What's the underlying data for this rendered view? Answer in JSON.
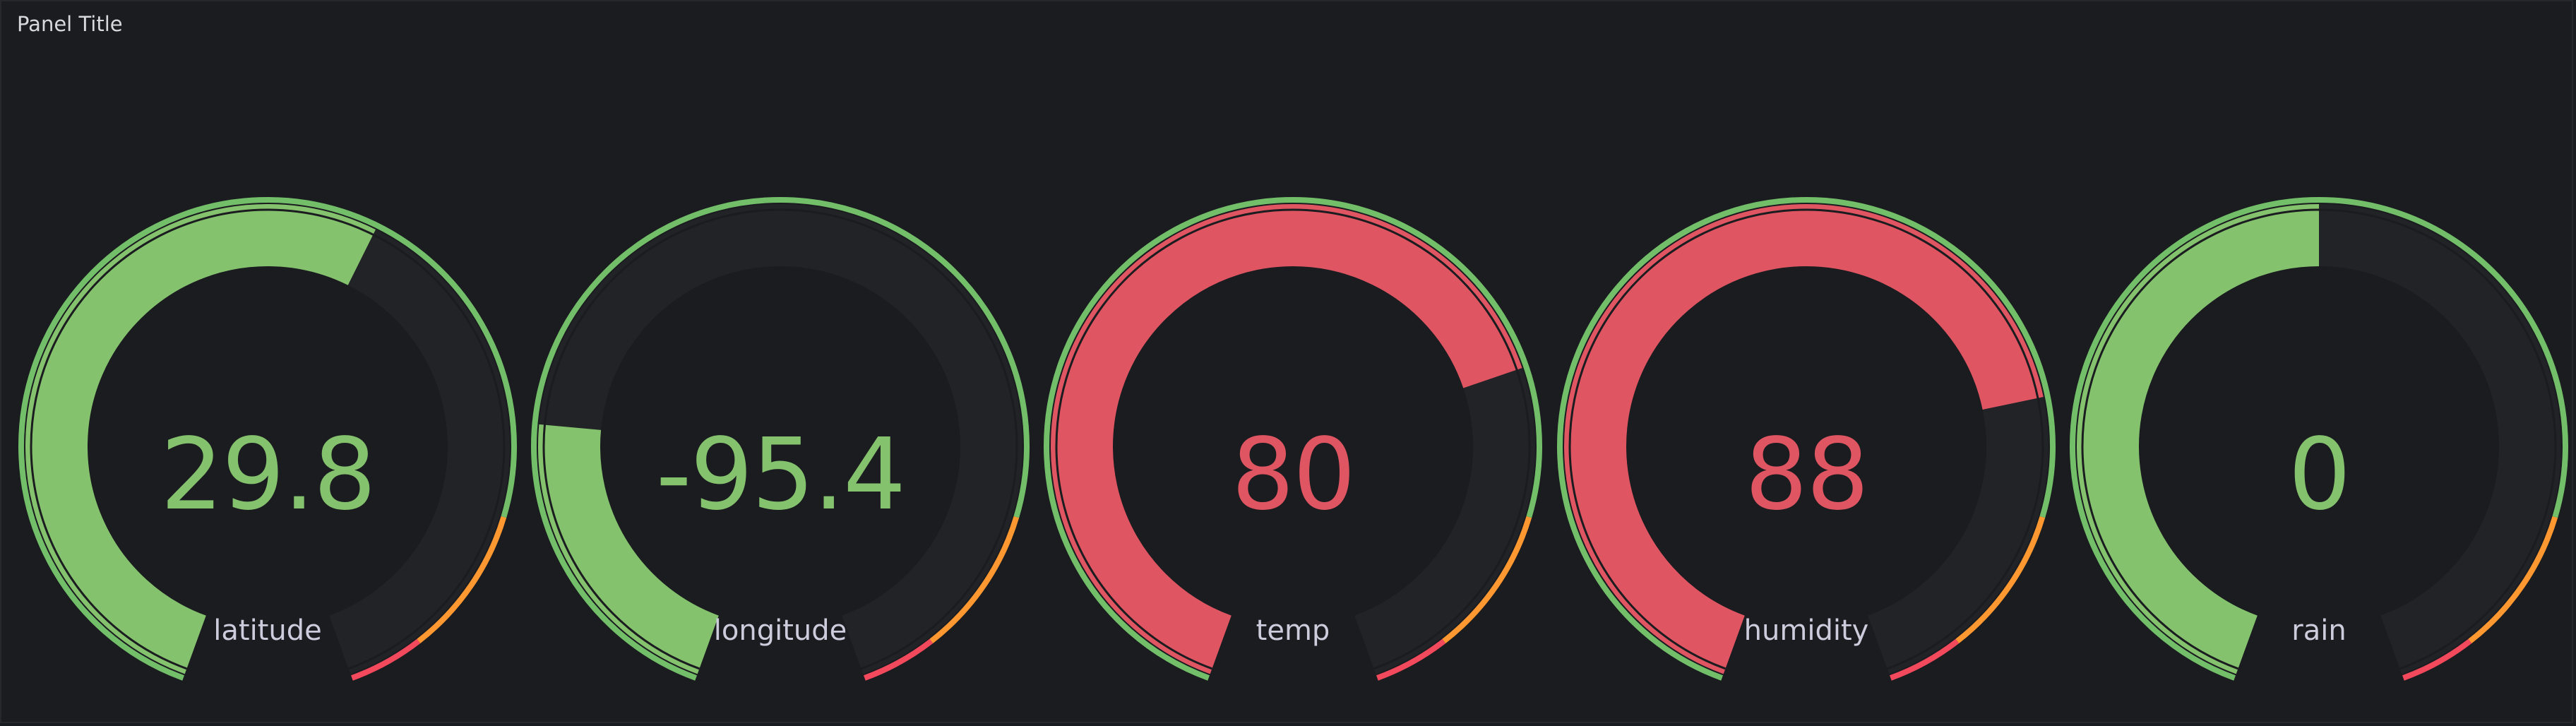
{
  "panel": {
    "title": "Panel Title"
  },
  "gauge_range": {
    "min": -180,
    "max": 180
  },
  "thresholds": [
    {
      "color": "#73bf69",
      "value": null
    },
    {
      "color": "#ff9830",
      "value": 120
    },
    {
      "color": "#f2495c",
      "value": 160
    }
  ],
  "colors": {
    "background": "#1a1c20",
    "track": "#212327",
    "green": "#85c26d",
    "red": "#e05562",
    "orange": "#f5a345"
  },
  "gauges": [
    {
      "name": "latitude",
      "label": "latitude",
      "display": "29.8",
      "value": 29.8,
      "color": "#85c26d"
    },
    {
      "name": "longitude",
      "label": "longitude",
      "display": "-95.4",
      "value": -95.4,
      "color": "#85c26d"
    },
    {
      "name": "temp",
      "label": "temp",
      "display": "80",
      "value": 80,
      "color": "#e05562"
    },
    {
      "name": "humidity",
      "label": "humidity",
      "display": "88",
      "value": 88,
      "color": "#e05562"
    },
    {
      "name": "rain",
      "label": "rain",
      "display": "0",
      "value": 0,
      "color": "#85c26d"
    }
  ]
}
